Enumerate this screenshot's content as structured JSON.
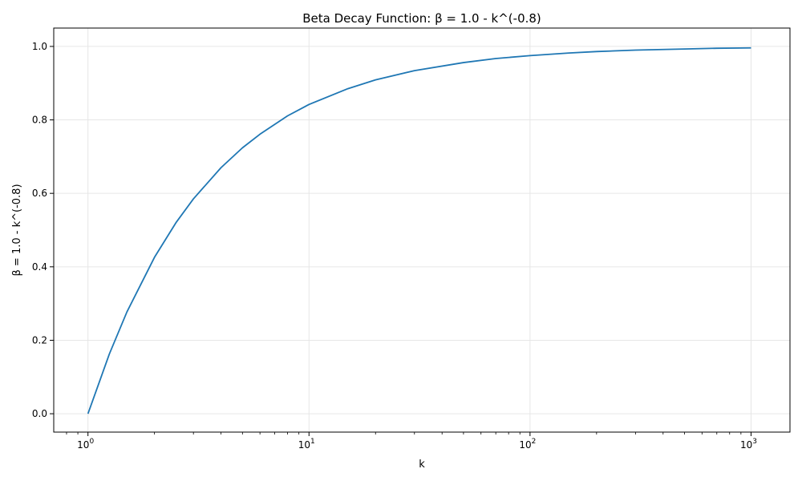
{
  "chart_data": {
    "type": "line",
    "title": "Beta Decay Function: β = 1.0 - k^(-0.8)",
    "xlabel": "k",
    "ylabel": "β = 1.0 - k^(-0.8)",
    "xscale": "log",
    "xlim": [
      0.7,
      1500
    ],
    "ylim": [
      -0.05,
      1.05
    ],
    "grid": true,
    "x_ticks": [
      {
        "base": "10",
        "exp": "0",
        "value": 1
      },
      {
        "base": "10",
        "exp": "1",
        "value": 10
      },
      {
        "base": "10",
        "exp": "2",
        "value": 100
      },
      {
        "base": "10",
        "exp": "3",
        "value": 1000
      }
    ],
    "y_ticks": [
      {
        "label": "0.0",
        "value": 0.0
      },
      {
        "label": "0.2",
        "value": 0.2
      },
      {
        "label": "0.4",
        "value": 0.4
      },
      {
        "label": "0.6",
        "value": 0.6
      },
      {
        "label": "0.8",
        "value": 0.8
      },
      {
        "label": "1.0",
        "value": 1.0
      }
    ],
    "series": [
      {
        "color": "#1f77b4",
        "x": [
          1,
          1.25,
          1.5,
          2,
          2.5,
          3,
          4,
          5,
          6,
          8,
          10,
          15,
          20,
          30,
          50,
          70,
          100,
          150,
          200,
          300,
          500,
          700,
          1000
        ],
        "values": [
          0.0,
          0.163,
          0.277,
          0.426,
          0.52,
          0.585,
          0.67,
          0.724,
          0.761,
          0.811,
          0.842,
          0.885,
          0.909,
          0.934,
          0.956,
          0.967,
          0.975,
          0.982,
          0.986,
          0.99,
          0.993,
          0.995,
          0.996
        ]
      }
    ]
  }
}
